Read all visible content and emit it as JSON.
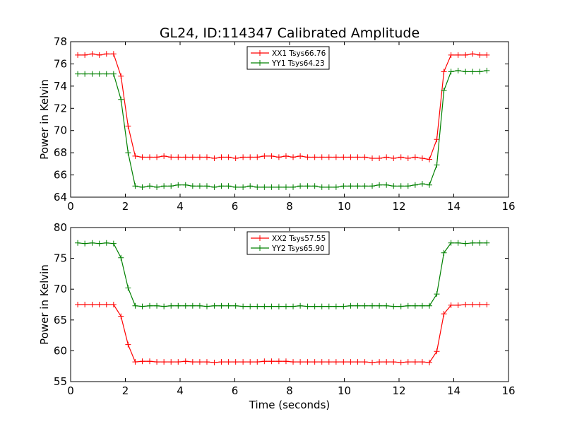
{
  "figure": {
    "title": "GL24, ID:114347 Calibrated Amplitude"
  },
  "chart_data": [
    {
      "type": "line",
      "title": "GL24, ID:114347 Calibrated Amplitude",
      "xlabel": "",
      "ylabel": "Power in Kelvin",
      "xlim": [
        0,
        16
      ],
      "ylim": [
        64,
        78
      ],
      "xticks": [
        0,
        2,
        4,
        6,
        8,
        10,
        12,
        14,
        16
      ],
      "yticks": [
        64,
        66,
        68,
        70,
        72,
        74,
        76,
        78
      ],
      "grid": false,
      "legend_position": "top-center",
      "x": [
        0.26,
        0.52,
        0.79,
        1.05,
        1.31,
        1.57,
        1.84,
        2.1,
        2.36,
        2.62,
        2.89,
        3.15,
        3.41,
        3.67,
        3.93,
        4.2,
        4.46,
        4.72,
        4.98,
        5.25,
        5.51,
        5.77,
        6.03,
        6.3,
        6.56,
        6.82,
        7.08,
        7.34,
        7.61,
        7.87,
        8.13,
        8.39,
        8.66,
        8.92,
        9.18,
        9.44,
        9.7,
        9.97,
        10.23,
        10.49,
        10.75,
        11.02,
        11.28,
        11.54,
        11.8,
        12.07,
        12.33,
        12.59,
        12.85,
        13.11,
        13.38,
        13.64,
        13.9,
        14.16,
        14.43,
        14.69,
        14.95,
        15.21
      ],
      "series": [
        {
          "name": "XX1 Tsys66.76",
          "color": "#ff0000",
          "values": [
            76.8,
            76.8,
            76.9,
            76.8,
            76.9,
            76.9,
            74.9,
            70.4,
            67.7,
            67.6,
            67.6,
            67.6,
            67.7,
            67.6,
            67.6,
            67.6,
            67.6,
            67.6,
            67.6,
            67.5,
            67.6,
            67.6,
            67.5,
            67.6,
            67.6,
            67.6,
            67.7,
            67.7,
            67.6,
            67.7,
            67.6,
            67.7,
            67.6,
            67.6,
            67.6,
            67.6,
            67.6,
            67.6,
            67.6,
            67.6,
            67.6,
            67.5,
            67.5,
            67.6,
            67.5,
            67.6,
            67.5,
            67.6,
            67.5,
            67.4,
            69.2,
            75.3,
            76.8,
            76.8,
            76.8,
            76.9,
            76.8,
            76.8
          ]
        },
        {
          "name": "YY1 Tsys64.23",
          "color": "#008000",
          "values": [
            75.1,
            75.1,
            75.1,
            75.1,
            75.1,
            75.1,
            72.8,
            68.0,
            65.0,
            64.9,
            65.0,
            64.9,
            65.0,
            65.0,
            65.1,
            65.1,
            65.0,
            65.0,
            65.0,
            64.9,
            65.0,
            65.0,
            64.9,
            64.9,
            65.0,
            64.9,
            64.9,
            64.9,
            64.9,
            64.9,
            64.9,
            65.0,
            65.0,
            65.0,
            64.9,
            64.9,
            64.9,
            65.0,
            65.0,
            65.0,
            65.0,
            65.0,
            65.1,
            65.1,
            65.0,
            65.0,
            65.0,
            65.1,
            65.2,
            65.1,
            66.9,
            73.6,
            75.3,
            75.4,
            75.3,
            75.3,
            75.3,
            75.4
          ]
        }
      ]
    },
    {
      "type": "line",
      "title": "",
      "xlabel": "Time (seconds)",
      "ylabel": "Power in Kelvin",
      "xlim": [
        0,
        16
      ],
      "ylim": [
        55,
        80
      ],
      "xticks": [
        0,
        2,
        4,
        6,
        8,
        10,
        12,
        14,
        16
      ],
      "yticks": [
        55,
        60,
        65,
        70,
        75,
        80
      ],
      "grid": false,
      "legend_position": "top-center",
      "x": [
        0.26,
        0.52,
        0.79,
        1.05,
        1.31,
        1.57,
        1.84,
        2.1,
        2.36,
        2.62,
        2.89,
        3.15,
        3.41,
        3.67,
        3.93,
        4.2,
        4.46,
        4.72,
        4.98,
        5.25,
        5.51,
        5.77,
        6.03,
        6.3,
        6.56,
        6.82,
        7.08,
        7.34,
        7.61,
        7.87,
        8.13,
        8.39,
        8.66,
        8.92,
        9.18,
        9.44,
        9.7,
        9.97,
        10.23,
        10.49,
        10.75,
        11.02,
        11.28,
        11.54,
        11.8,
        12.07,
        12.33,
        12.59,
        12.85,
        13.11,
        13.38,
        13.64,
        13.9,
        14.16,
        14.43,
        14.69,
        14.95,
        15.21
      ],
      "series": [
        {
          "name": "XX2 Tsys57.55",
          "color": "#ff0000",
          "values": [
            67.5,
            67.5,
            67.5,
            67.5,
            67.5,
            67.5,
            65.6,
            61.0,
            58.2,
            58.3,
            58.3,
            58.2,
            58.2,
            58.2,
            58.2,
            58.3,
            58.2,
            58.2,
            58.2,
            58.1,
            58.2,
            58.2,
            58.2,
            58.2,
            58.2,
            58.2,
            58.3,
            58.3,
            58.3,
            58.3,
            58.2,
            58.2,
            58.2,
            58.2,
            58.2,
            58.2,
            58.2,
            58.2,
            58.2,
            58.2,
            58.2,
            58.1,
            58.2,
            58.2,
            58.2,
            58.1,
            58.2,
            58.2,
            58.2,
            58.1,
            59.9,
            66.0,
            67.4,
            67.4,
            67.5,
            67.5,
            67.5,
            67.5
          ]
        },
        {
          "name": "YY2 Tsys65.90",
          "color": "#008000",
          "values": [
            77.5,
            77.4,
            77.5,
            77.4,
            77.5,
            77.4,
            75.1,
            70.2,
            67.3,
            67.2,
            67.3,
            67.3,
            67.2,
            67.3,
            67.3,
            67.3,
            67.3,
            67.3,
            67.2,
            67.3,
            67.3,
            67.3,
            67.3,
            67.2,
            67.2,
            67.2,
            67.2,
            67.2,
            67.2,
            67.2,
            67.2,
            67.3,
            67.2,
            67.2,
            67.2,
            67.2,
            67.2,
            67.2,
            67.3,
            67.3,
            67.3,
            67.3,
            67.3,
            67.3,
            67.2,
            67.2,
            67.3,
            67.3,
            67.3,
            67.3,
            69.2,
            75.9,
            77.5,
            77.5,
            77.4,
            77.5,
            77.5,
            77.5
          ]
        }
      ]
    }
  ]
}
